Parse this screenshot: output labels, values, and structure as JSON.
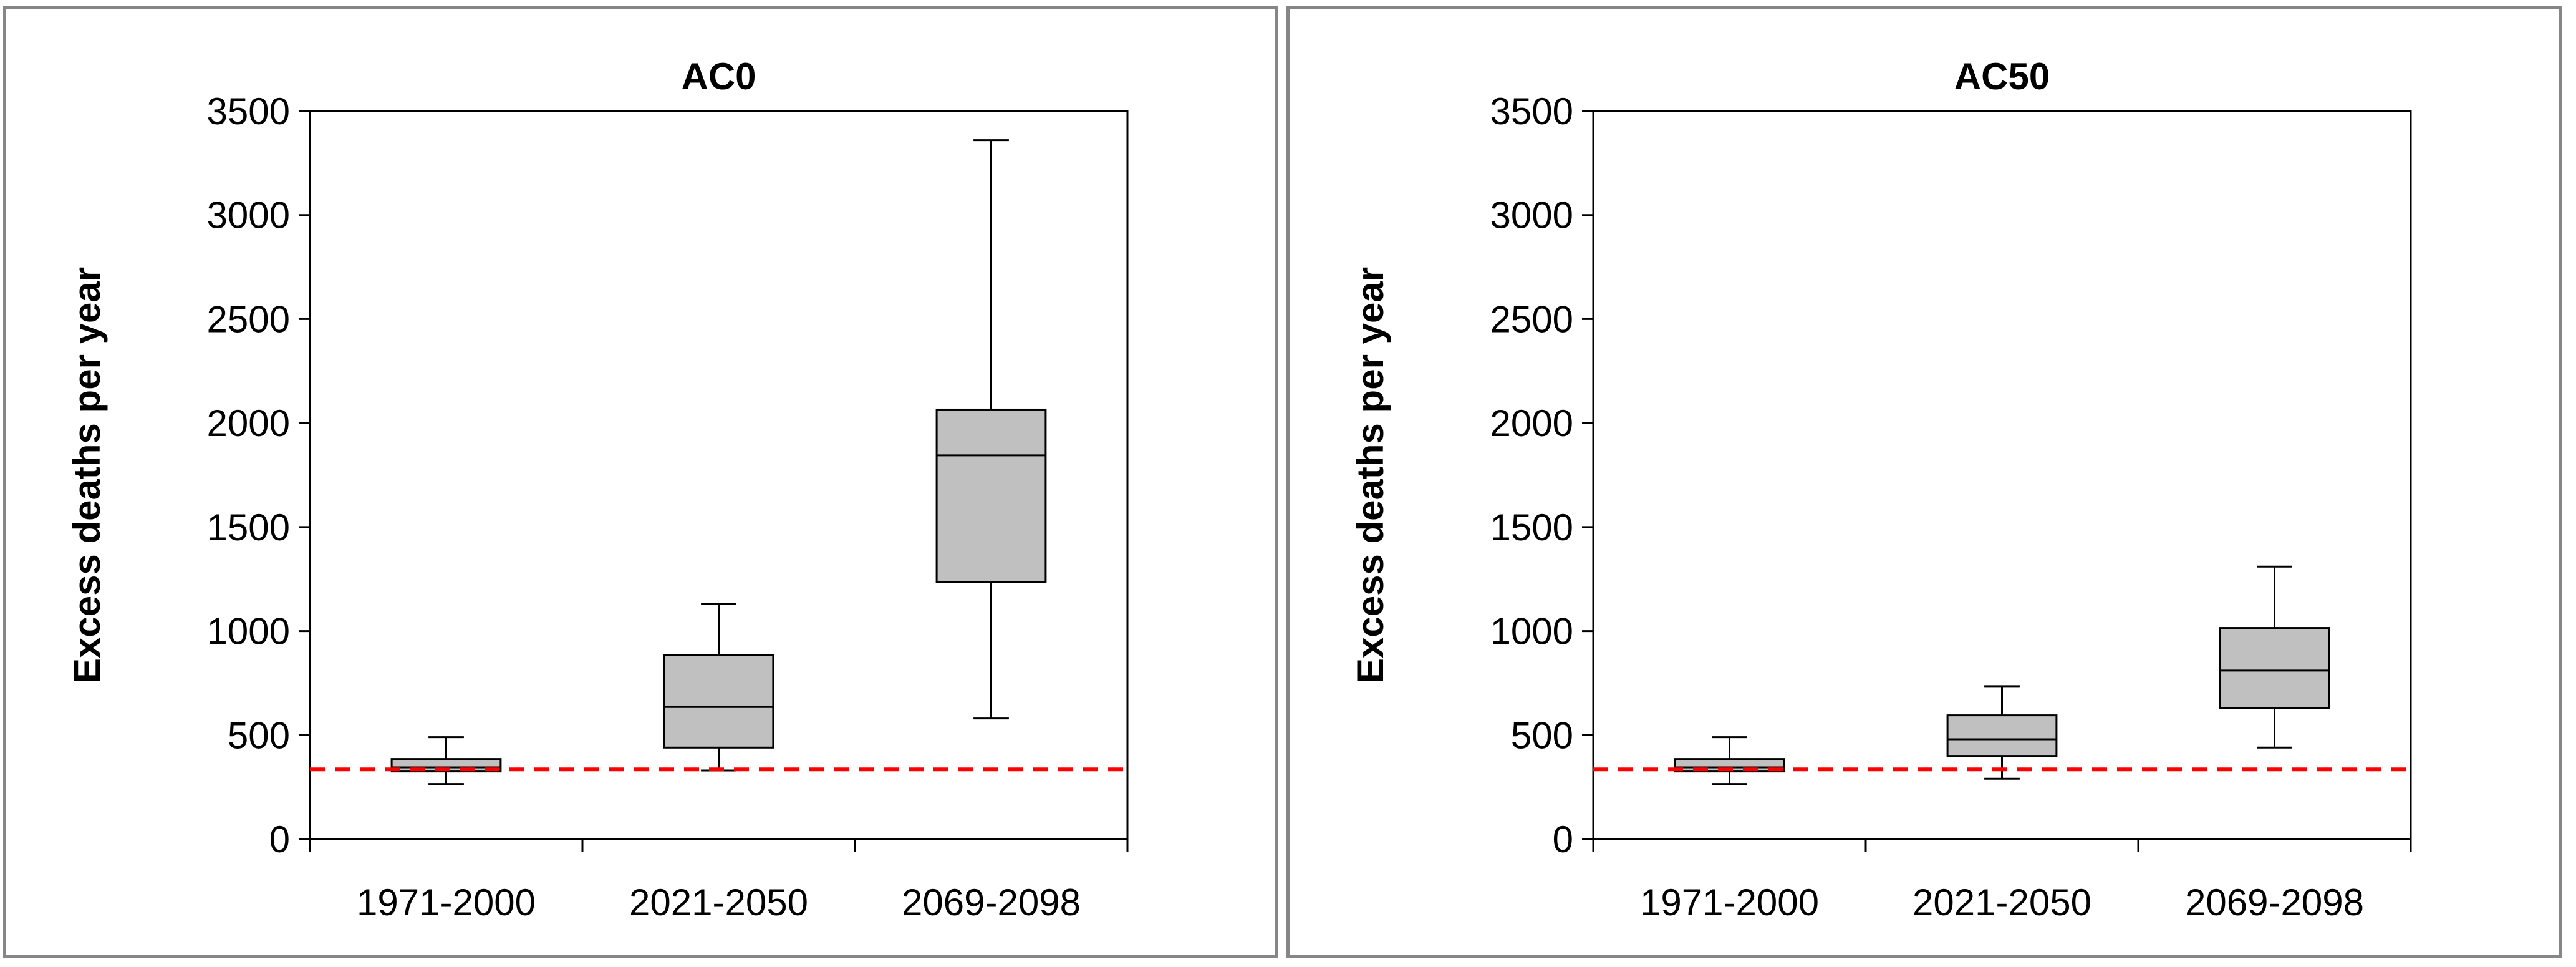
{
  "chart_data": [
    {
      "type": "boxplot",
      "title": "AC0",
      "ylabel": "Excess deaths per year",
      "xlabel": "",
      "ylim": [
        0,
        3500
      ],
      "yticks": [
        0,
        500,
        1000,
        1500,
        2000,
        2500,
        3000,
        3500
      ],
      "categories": [
        "1971-2000",
        "2021-2050",
        "2069-2098"
      ],
      "boxes": [
        {
          "min": 265,
          "q1": 325,
          "median": 345,
          "q3": 385,
          "max": 490
        },
        {
          "min": 330,
          "q1": 440,
          "median": 635,
          "q3": 885,
          "max": 1130
        },
        {
          "min": 580,
          "q1": 1235,
          "median": 1845,
          "q3": 2065,
          "max": 3360
        }
      ],
      "reference_line": {
        "y": 335,
        "color": "#ff0000",
        "style": "dashed"
      },
      "box_color": "#c0c0c0",
      "grid": false
    },
    {
      "type": "boxplot",
      "title": "AC50",
      "ylabel": "Excess deaths per year",
      "xlabel": "",
      "ylim": [
        0,
        3500
      ],
      "yticks": [
        0,
        500,
        1000,
        1500,
        2000,
        2500,
        3000,
        3500
      ],
      "categories": [
        "1971-2000",
        "2021-2050",
        "2069-2098"
      ],
      "boxes": [
        {
          "min": 265,
          "q1": 325,
          "median": 345,
          "q3": 385,
          "max": 490
        },
        {
          "min": 290,
          "q1": 400,
          "median": 480,
          "q3": 595,
          "max": 735
        },
        {
          "min": 440,
          "q1": 630,
          "median": 810,
          "q3": 1015,
          "max": 1310
        }
      ],
      "reference_line": {
        "y": 335,
        "color": "#ff0000",
        "style": "dashed"
      },
      "box_color": "#c0c0c0",
      "grid": false
    }
  ]
}
